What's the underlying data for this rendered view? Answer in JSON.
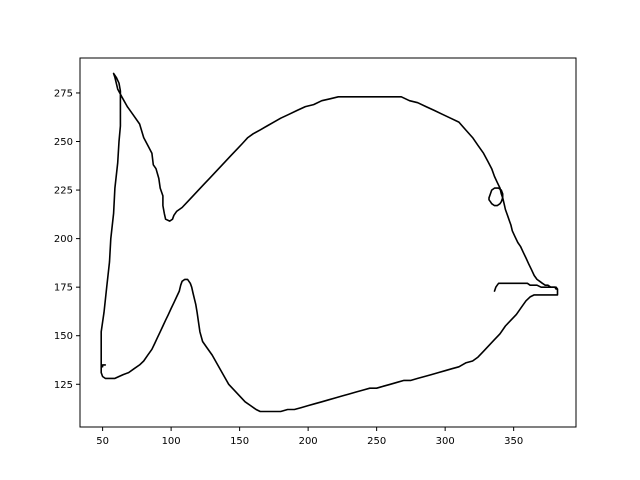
{
  "chart_data": {
    "type": "line",
    "title": "",
    "xlabel": "",
    "ylabel": "",
    "xlim": [
      33.5,
      395.5
    ],
    "ylim": [
      103,
      293
    ],
    "x_ticks": [
      50,
      100,
      150,
      200,
      250,
      300,
      350
    ],
    "y_ticks": [
      125,
      150,
      175,
      200,
      225,
      250,
      275
    ],
    "grid": false,
    "legend": "none",
    "line_color": "#000000",
    "series": [
      {
        "id": "body-outline",
        "points": [
          [
            58,
            285
          ],
          [
            59,
            283
          ],
          [
            60,
            280
          ],
          [
            61,
            277
          ],
          [
            64,
            273
          ],
          [
            68,
            268
          ],
          [
            72,
            264
          ],
          [
            77,
            259
          ],
          [
            80,
            252
          ],
          [
            83,
            248
          ],
          [
            86,
            244
          ],
          [
            87,
            238
          ],
          [
            89,
            236
          ],
          [
            91,
            231
          ],
          [
            92,
            226
          ],
          [
            94,
            222
          ],
          [
            94,
            217
          ],
          [
            95,
            213
          ],
          [
            96,
            210
          ],
          [
            99,
            209
          ],
          [
            101,
            210
          ],
          [
            102,
            212
          ],
          [
            104,
            214
          ],
          [
            108,
            216
          ],
          [
            112,
            219
          ],
          [
            116,
            222
          ],
          [
            120,
            225
          ],
          [
            124,
            228
          ],
          [
            128,
            231
          ],
          [
            132,
            234
          ],
          [
            136,
            237
          ],
          [
            140,
            240
          ],
          [
            144,
            243
          ],
          [
            148,
            246
          ],
          [
            152,
            249
          ],
          [
            156,
            252
          ],
          [
            160,
            254
          ],
          [
            165,
            256
          ],
          [
            170,
            258
          ],
          [
            175,
            260
          ],
          [
            180,
            262
          ],
          [
            186,
            264
          ],
          [
            192,
            266
          ],
          [
            198,
            268
          ],
          [
            204,
            269
          ],
          [
            210,
            271
          ],
          [
            216,
            272
          ],
          [
            222,
            273
          ],
          [
            228,
            273
          ],
          [
            234,
            273
          ],
          [
            240,
            273
          ],
          [
            246,
            273
          ],
          [
            252,
            273
          ],
          [
            260,
            273
          ],
          [
            268,
            273
          ],
          [
            274,
            271
          ],
          [
            280,
            270
          ],
          [
            286,
            268
          ],
          [
            292,
            266
          ],
          [
            298,
            264
          ],
          [
            304,
            262
          ],
          [
            310,
            260
          ],
          [
            315,
            256
          ],
          [
            320,
            252
          ],
          [
            324,
            248
          ],
          [
            328,
            244
          ],
          [
            331,
            240
          ],
          [
            334,
            236
          ],
          [
            336,
            232
          ],
          [
            338,
            229
          ],
          [
            340,
            226
          ],
          [
            341,
            223
          ],
          [
            342,
            221
          ],
          [
            343,
            218
          ],
          [
            344,
            215
          ],
          [
            345,
            213
          ],
          [
            346,
            211
          ],
          [
            347,
            209
          ],
          [
            348,
            207
          ],
          [
            349,
            204
          ],
          [
            351,
            201
          ],
          [
            353,
            198
          ],
          [
            355,
            196
          ],
          [
            357,
            193
          ],
          [
            359,
            190
          ],
          [
            361,
            187
          ],
          [
            363,
            184
          ],
          [
            365,
            181
          ],
          [
            367,
            179
          ],
          [
            369,
            178
          ],
          [
            371,
            177
          ],
          [
            373,
            176
          ],
          [
            375,
            176
          ],
          [
            377,
            175
          ],
          [
            379,
            175
          ],
          [
            381,
            175
          ],
          [
            382,
            174
          ],
          [
            382,
            171
          ],
          [
            380,
            171
          ],
          [
            377,
            171
          ],
          [
            374,
            171
          ],
          [
            371,
            171
          ],
          [
            368,
            171
          ],
          [
            365,
            171
          ],
          [
            362,
            170
          ],
          [
            359,
            168
          ],
          [
            356,
            165
          ],
          [
            352,
            161
          ],
          [
            348,
            158
          ],
          [
            344,
            155
          ],
          [
            340,
            151
          ],
          [
            336,
            148
          ],
          [
            332,
            145
          ],
          [
            328,
            142
          ],
          [
            324,
            139
          ],
          [
            320,
            137
          ],
          [
            315,
            136
          ],
          [
            310,
            134
          ],
          [
            305,
            133
          ],
          [
            300,
            132
          ],
          [
            295,
            131
          ],
          [
            290,
            130
          ],
          [
            285,
            129
          ],
          [
            280,
            128
          ],
          [
            275,
            127
          ],
          [
            270,
            127
          ],
          [
            265,
            126
          ],
          [
            260,
            125
          ],
          [
            255,
            124
          ],
          [
            250,
            123
          ],
          [
            245,
            123
          ],
          [
            240,
            122
          ],
          [
            235,
            121
          ],
          [
            230,
            120
          ],
          [
            225,
            119
          ],
          [
            220,
            118
          ],
          [
            215,
            117
          ],
          [
            210,
            116
          ],
          [
            205,
            115
          ],
          [
            200,
            114
          ],
          [
            195,
            113
          ],
          [
            190,
            112
          ],
          [
            185,
            112
          ],
          [
            180,
            111
          ],
          [
            175,
            111
          ],
          [
            170,
            111
          ],
          [
            165,
            111
          ],
          [
            162,
            112
          ],
          [
            158,
            114
          ],
          [
            154,
            116
          ],
          [
            150,
            119
          ],
          [
            146,
            122
          ],
          [
            142,
            125
          ],
          [
            138,
            130
          ],
          [
            134,
            135
          ],
          [
            130,
            140
          ],
          [
            126,
            144
          ],
          [
            123,
            147
          ],
          [
            121,
            152
          ],
          [
            120,
            157
          ],
          [
            119,
            162
          ],
          [
            118,
            166
          ],
          [
            117,
            169
          ],
          [
            116,
            172
          ],
          [
            115,
            175
          ],
          [
            114,
            177
          ],
          [
            112,
            179
          ],
          [
            110,
            179
          ],
          [
            108,
            178
          ],
          [
            107,
            176
          ],
          [
            106,
            173
          ],
          [
            104,
            170
          ],
          [
            102,
            167
          ],
          [
            100,
            164
          ],
          [
            98,
            161
          ],
          [
            96,
            158
          ],
          [
            94,
            155
          ],
          [
            92,
            152
          ],
          [
            90,
            149
          ],
          [
            88,
            146
          ],
          [
            86,
            143
          ],
          [
            83,
            140
          ],
          [
            80,
            137
          ],
          [
            77,
            135
          ],
          [
            73,
            133
          ],
          [
            69,
            131
          ],
          [
            65,
            130
          ],
          [
            62,
            129
          ],
          [
            59,
            128
          ],
          [
            55,
            128
          ],
          [
            52,
            128
          ],
          [
            50,
            129
          ],
          [
            49,
            131
          ],
          [
            49,
            134
          ],
          [
            49,
            139
          ],
          [
            49,
            145
          ],
          [
            49,
            152
          ],
          [
            51,
            162
          ],
          [
            53,
            175
          ],
          [
            55,
            188
          ],
          [
            56,
            200
          ],
          [
            58,
            213
          ],
          [
            59,
            226
          ],
          [
            61,
            239
          ],
          [
            62,
            250
          ],
          [
            63,
            258
          ],
          [
            63,
            268
          ],
          [
            63,
            276
          ],
          [
            62,
            280
          ],
          [
            60,
            283
          ],
          [
            58,
            285
          ]
        ]
      },
      {
        "id": "eye",
        "points": [
          [
            332,
            220
          ],
          [
            333,
            219
          ],
          [
            334,
            218
          ],
          [
            336,
            217
          ],
          [
            338,
            217
          ],
          [
            340,
            218
          ],
          [
            341,
            219
          ],
          [
            342,
            221
          ],
          [
            342,
            223
          ],
          [
            341,
            225
          ],
          [
            339,
            226
          ],
          [
            336,
            226
          ],
          [
            334,
            225
          ],
          [
            333,
            223
          ],
          [
            332,
            221
          ],
          [
            332,
            220
          ]
        ]
      },
      {
        "id": "mouth-line",
        "points": [
          [
            336,
            173
          ],
          [
            337,
            175
          ],
          [
            338,
            176
          ],
          [
            339,
            177
          ],
          [
            342,
            177
          ],
          [
            346,
            177
          ],
          [
            350,
            177
          ],
          [
            354,
            177
          ],
          [
            357,
            177
          ],
          [
            360,
            177
          ],
          [
            362,
            176
          ],
          [
            364,
            176
          ],
          [
            367,
            176
          ],
          [
            370,
            175
          ],
          [
            372,
            175
          ],
          [
            374,
            175
          ],
          [
            376,
            175
          ],
          [
            378,
            175
          ],
          [
            380,
            175
          ],
          [
            381,
            174
          ]
        ]
      },
      {
        "id": "fin-tip-mark",
        "points": [
          [
            50,
            134
          ],
          [
            50,
            135
          ],
          [
            52,
            135
          ]
        ]
      }
    ]
  }
}
